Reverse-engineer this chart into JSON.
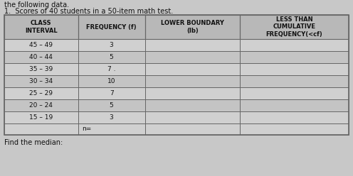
{
  "title_line1": "the following data.",
  "title_line2": "1.  Scores of 40 students in a 50-item math test.",
  "col_headers": [
    "CLASS\nINTERVAL",
    "FREQUENCY (f)",
    "LOWER BOUNDARY\n(lb)",
    "LESS THAN\nCUMULATIVE\nFREQUENCY(<cf)"
  ],
  "rows": [
    [
      "45 – 49",
      "3",
      "",
      ""
    ],
    [
      "40 – 44",
      "5",
      "",
      ""
    ],
    [
      "35 – 39",
      "7 .",
      "",
      ""
    ],
    [
      "30 – 34",
      "10",
      "",
      ""
    ],
    [
      "25 – 29",
      "7",
      "",
      ""
    ],
    [
      "20 – 24",
      "5",
      "",
      ""
    ],
    [
      "15 – 19",
      "3",
      "",
      ""
    ]
  ],
  "footer_row": [
    "",
    "n=",
    "",
    ""
  ],
  "find_median_text": "Find the median:",
  "fig_bg": "#c8c8c8",
  "header_bg": "#b8b8b8",
  "row_bg_even": "#d0d0d0",
  "row_bg_odd": "#c4c4c4",
  "footer_bg": "#d0d0d0",
  "border_color": "#666666",
  "text_color": "#111111"
}
